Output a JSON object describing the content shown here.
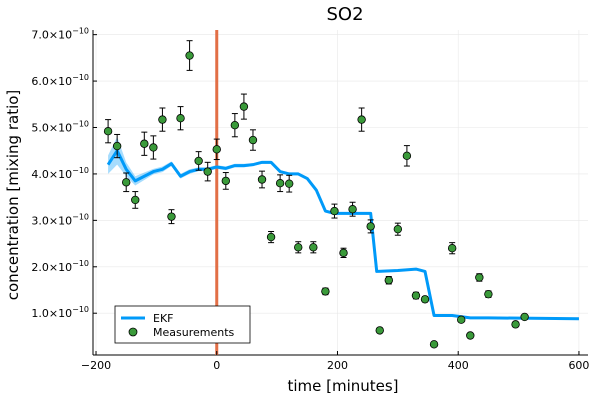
{
  "chart_data": {
    "type": "line",
    "title": "SO2",
    "xlabel": "time [minutes]",
    "ylabel": "concentration [mixing ratio]",
    "xlim": [
      -205,
      615
    ],
    "ylim": [
      1e-11,
      7.1e-10
    ],
    "x_ticks": [
      -200,
      0,
      200,
      400,
      600
    ],
    "x_tick_labels": [
      "−200",
      "0",
      "200",
      "400",
      "600"
    ],
    "y_ticks": [
      1e-10,
      2e-10,
      3e-10,
      4e-10,
      5e-10,
      6e-10,
      7e-10
    ],
    "y_tick_mantissas": [
      "1.0",
      "2.0",
      "3.0",
      "4.0",
      "5.0",
      "6.0",
      "7.0"
    ],
    "y_tick_base": "×10",
    "y_tick_exponent": "−10",
    "grid": true,
    "legend_position": "bottom-left",
    "vline": {
      "x": 0,
      "color": "#e26f46"
    },
    "series": [
      {
        "name": "EKF",
        "kind": "line",
        "color": "#009af9",
        "x": [
          -180,
          -165,
          -150,
          -135,
          -120,
          -105,
          -90,
          -75,
          -60,
          -45,
          -30,
          -15,
          0,
          15,
          30,
          45,
          60,
          75,
          90,
          105,
          120,
          135,
          150,
          165,
          180,
          195,
          210,
          225,
          240,
          255,
          265,
          300,
          330,
          345,
          360,
          390,
          420,
          450,
          600
        ],
        "y": [
          4.2e-10,
          4.5e-10,
          4.1e-10,
          3.85e-10,
          3.95e-10,
          4.05e-10,
          4.1e-10,
          4.22e-10,
          3.95e-10,
          4.05e-10,
          4.1e-10,
          4.1e-10,
          4.15e-10,
          4.12e-10,
          4.18e-10,
          4.18e-10,
          4.2e-10,
          4.25e-10,
          4.25e-10,
          4.05e-10,
          4e-10,
          4e-10,
          3.9e-10,
          3.65e-10,
          3.2e-10,
          3.15e-10,
          3.15e-10,
          3.15e-10,
          3.15e-10,
          3.15e-10,
          1.9e-10,
          1.92e-10,
          1.95e-10,
          1.9e-10,
          9.5e-11,
          9.5e-11,
          9e-11,
          9e-11,
          8.8e-11
        ],
        "band": [
          2e-11,
          3e-11,
          1.5e-11,
          1e-11,
          8e-12,
          6e-12,
          6e-12,
          5e-12,
          5e-12,
          5e-12,
          4e-12,
          4e-12,
          4e-12,
          4e-12,
          4e-12,
          4e-12,
          3e-12,
          3e-12,
          3e-12,
          3e-12,
          3e-12,
          3e-12,
          3e-12,
          3e-12,
          3e-12,
          3e-12,
          3e-12,
          3e-12,
          3e-12,
          3e-12,
          2e-12,
          2e-12,
          2e-12,
          2e-12,
          2e-12,
          2e-12,
          2e-12,
          2e-12,
          2e-12
        ]
      },
      {
        "name": "Measurements",
        "kind": "scatter",
        "color": "#3a9a3a",
        "x": [
          -180,
          -165,
          -150,
          -135,
          -120,
          -105,
          -90,
          -75,
          -60,
          -45,
          -30,
          -15,
          0,
          15,
          30,
          45,
          60,
          75,
          90,
          105,
          120,
          135,
          160,
          180,
          195,
          210,
          225,
          240,
          255,
          270,
          285,
          300,
          315,
          330,
          345,
          360,
          390,
          405,
          420,
          435,
          450,
          495,
          510
        ],
        "y": [
          4.92e-10,
          4.6e-10,
          3.82e-10,
          3.44e-10,
          4.65e-10,
          4.57e-10,
          5.17e-10,
          3.08e-10,
          5.2e-10,
          6.55e-10,
          4.28e-10,
          4.05e-10,
          4.53e-10,
          3.85e-10,
          5.05e-10,
          5.45e-10,
          4.73e-10,
          3.88e-10,
          2.64e-10,
          3.8e-10,
          3.79e-10,
          2.42e-10,
          2.42e-10,
          1.47e-10,
          3.2e-10,
          2.3e-10,
          3.24e-10,
          5.17e-10,
          2.87e-10,
          6.3e-11,
          1.71e-10,
          2.81e-10,
          4.39e-10,
          1.38e-10,
          1.3e-10,
          3.3e-11,
          2.4e-10,
          8.6e-11,
          5.2e-11,
          1.77e-10,
          1.41e-10,
          7.6e-11,
          9.2e-11
        ],
        "err": [
          2.5e-11,
          2.5e-11,
          2e-11,
          1.8e-11,
          2.5e-11,
          2.5e-11,
          2.5e-11,
          1.5e-11,
          2.5e-11,
          3.2e-11,
          2e-11,
          2e-11,
          2.2e-11,
          1.8e-11,
          2.5e-11,
          2.7e-11,
          2.2e-11,
          1.8e-11,
          1.2e-11,
          1.8e-11,
          1.8e-11,
          1.2e-11,
          1.2e-11,
          7e-12,
          1.5e-11,
          1e-11,
          1.5e-11,
          2.5e-11,
          1.4e-11,
          3e-12,
          8e-12,
          1.3e-11,
          2.2e-11,
          7e-12,
          6e-12,
          2e-12,
          1.2e-11,
          4e-12,
          3e-12,
          8e-12,
          7e-12,
          4e-12,
          4e-12
        ]
      }
    ]
  }
}
